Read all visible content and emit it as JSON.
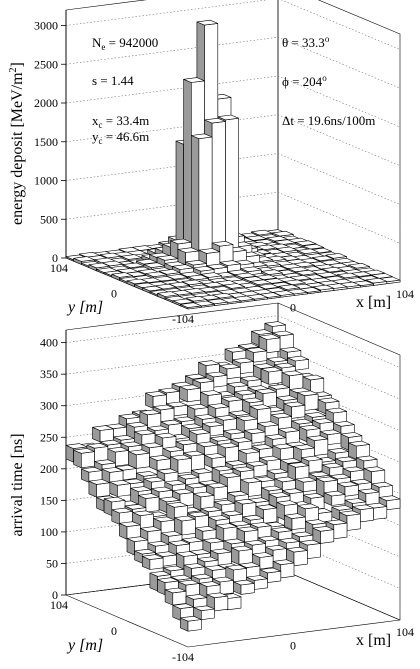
{
  "chart_data": [
    {
      "type": "bar3d",
      "ylabel_main": "energy deposit [MeV/m",
      "ylabel_sup": "2",
      "ylabel_close": "]",
      "zticks": [
        "0",
        "500",
        "1000",
        "1500",
        "2000",
        "2500",
        "3000"
      ],
      "zlim": [
        0,
        3200
      ],
      "xlabel": "x [m]",
      "ylabel_axis": "y [m]",
      "xticks": [
        "0",
        "104"
      ],
      "yticks": [
        "104",
        "0",
        "-104"
      ],
      "grid": true,
      "peak_cell": [
        33.4,
        46.6
      ],
      "peak_value": 3100,
      "annotations": {
        "ne_main": "N",
        "ne_sub": "e",
        "ne_val": " = 942000",
        "s": "s = 1.44",
        "xc_main": "x",
        "xc_sub": "c",
        "xc_val": " = 33.4m",
        "yc_main": "y",
        "yc_sub": "c",
        "yc_val": " = 46.6m",
        "theta_main": "θ = 33.3",
        "theta_sup": "o",
        "phi_main": "ϕ = 204",
        "phi_sup": "o",
        "dt": "Δt = 19.6ns/100m"
      }
    },
    {
      "type": "bar3d",
      "ylabel_main": "arrival time [ns]",
      "zticks": [
        "0",
        "50",
        "100",
        "150",
        "200",
        "250",
        "300",
        "350",
        "400"
      ],
      "zlim": [
        0,
        420
      ],
      "xlabel": "x [m]",
      "ylabel_axis": "y [m]",
      "xticks": [
        "0",
        "104"
      ],
      "yticks": [
        "104",
        "0",
        "-104"
      ],
      "grid": true,
      "plane_front_corner_ns": 25,
      "plane_back_corner_ns": 395
    }
  ]
}
